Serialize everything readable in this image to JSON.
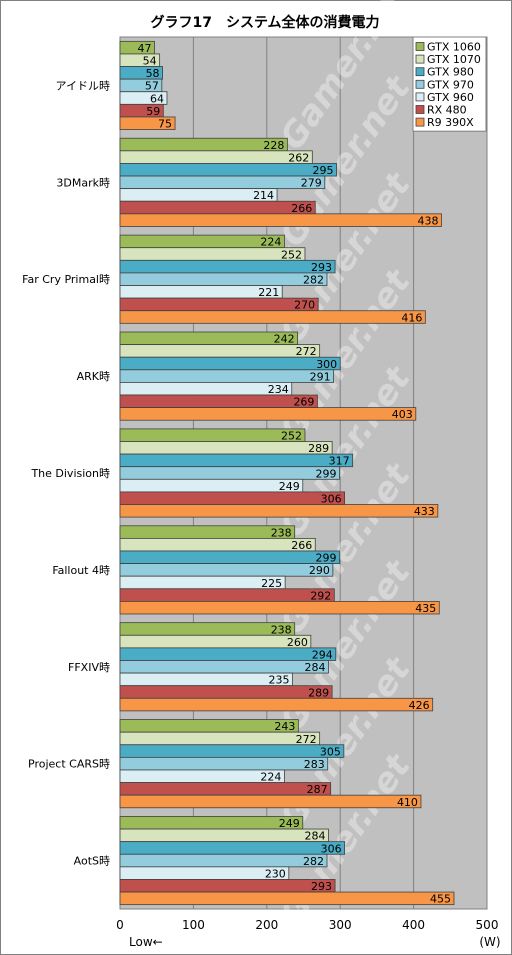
{
  "chart_data": {
    "type": "bar",
    "orientation": "horizontal",
    "title": "グラフ17　システム全体の消費電力",
    "unit_label": "(W)",
    "low_label": "Low←",
    "xlim": [
      0,
      500
    ],
    "xticks": [
      0,
      100,
      200,
      300,
      400,
      500
    ],
    "grid": true,
    "legend_position": "top-right",
    "watermark": "4Gamer.net",
    "categories": [
      "アイドル時",
      "3DMark時",
      "Far Cry Primal時",
      "ARK時",
      "The Division時",
      "Fallout 4時",
      "FFXIV時",
      "Project CARS時",
      "AotS時"
    ],
    "series": [
      {
        "name": "GTX 1060",
        "color": "#9bbb59",
        "values": [
          47,
          228,
          224,
          242,
          252,
          238,
          238,
          243,
          249
        ]
      },
      {
        "name": "GTX 1070",
        "color": "#d7e4bd",
        "values": [
          54,
          262,
          252,
          272,
          289,
          266,
          260,
          272,
          284
        ]
      },
      {
        "name": "GTX 980",
        "color": "#4bacc6",
        "values": [
          58,
          295,
          293,
          300,
          317,
          299,
          294,
          305,
          306
        ]
      },
      {
        "name": "GTX 970",
        "color": "#93cddd",
        "values": [
          57,
          279,
          282,
          291,
          299,
          290,
          284,
          283,
          282
        ]
      },
      {
        "name": "GTX 960",
        "color": "#dbeef4",
        "values": [
          64,
          214,
          221,
          234,
          249,
          225,
          235,
          224,
          230
        ]
      },
      {
        "name": "RX 480",
        "color": "#c0504d",
        "values": [
          59,
          266,
          270,
          269,
          306,
          292,
          289,
          287,
          293
        ]
      },
      {
        "name": "R9 390X",
        "color": "#f79646",
        "values": [
          75,
          438,
          416,
          403,
          433,
          435,
          426,
          410,
          455
        ]
      }
    ]
  }
}
